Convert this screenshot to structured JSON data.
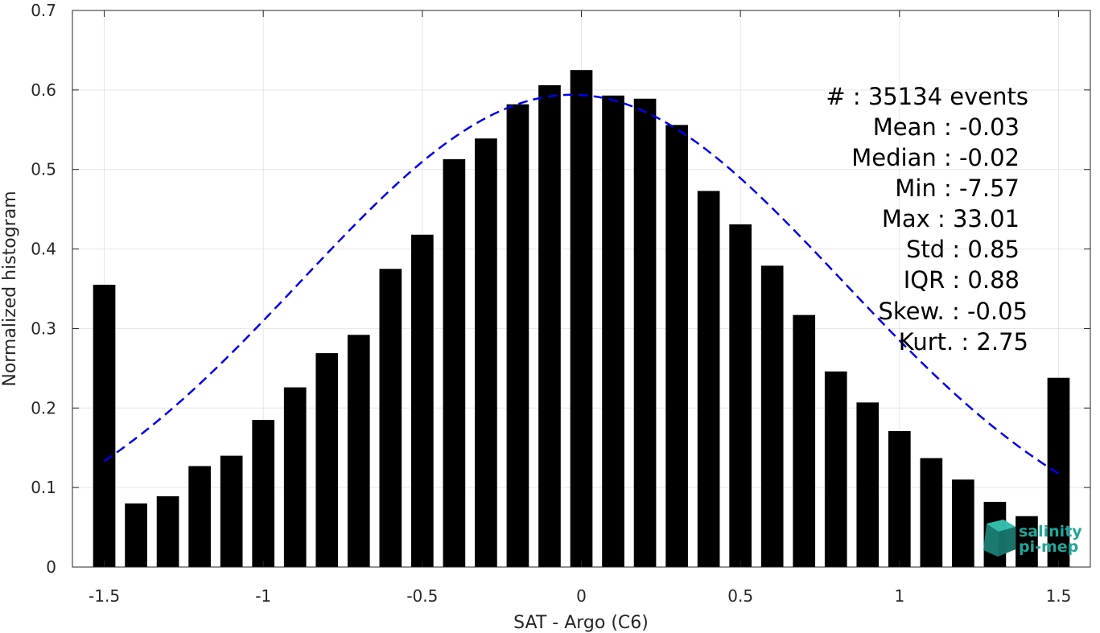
{
  "chart_data": {
    "type": "bar",
    "title": "",
    "xlabel": "SAT - Argo (C6)",
    "ylabel": "Normalized histogram",
    "xlim": [
      -1.6,
      1.6
    ],
    "ylim": [
      0,
      0.7
    ],
    "grid": true,
    "x_ticks": [
      "-1.5",
      "-1",
      "-0.5",
      "0",
      "0.5",
      "1",
      "1.5"
    ],
    "y_ticks": [
      "0",
      "0.1",
      "0.2",
      "0.3",
      "0.4",
      "0.5",
      "0.6",
      "0.7"
    ],
    "bar_color": "#000000",
    "bar_width": 0.07,
    "bars": {
      "x": [
        -1.5,
        -1.4,
        -1.3,
        -1.2,
        -1.1,
        -1.0,
        -0.9,
        -0.8,
        -0.7,
        -0.6,
        -0.5,
        -0.4,
        -0.3,
        -0.2,
        -0.1,
        0.0,
        0.1,
        0.2,
        0.3,
        0.4,
        0.5,
        0.6,
        0.7,
        0.8,
        0.9,
        1.0,
        1.1,
        1.2,
        1.3,
        1.4,
        1.5
      ],
      "values": [
        0.355,
        0.08,
        0.089,
        0.127,
        0.14,
        0.185,
        0.226,
        0.269,
        0.292,
        0.375,
        0.418,
        0.513,
        0.539,
        0.582,
        0.606,
        0.625,
        0.593,
        0.589,
        0.556,
        0.473,
        0.431,
        0.379,
        0.317,
        0.246,
        0.207,
        0.171,
        0.137,
        0.11,
        0.082,
        0.064,
        0.238
      ]
    },
    "fit_curve": {
      "style": "dashed",
      "color": "#0000ee",
      "mean": -0.03,
      "std": 0.85,
      "peak": 0.594,
      "x_range": [
        -1.5,
        1.5
      ]
    }
  },
  "stats": {
    "lines": [
      "#  : 35134 events",
      "Mean : -0.03",
      "Median : -0.02",
      "Min : -7.57",
      "Max : 33.01",
      "Std : 0.85",
      "IQR : 0.88",
      "Skew. : -0.05",
      "Kurt. : 2.75"
    ]
  },
  "logo": {
    "line1": "salinity",
    "line2": "pi-mep",
    "color": "#1fa79a"
  }
}
